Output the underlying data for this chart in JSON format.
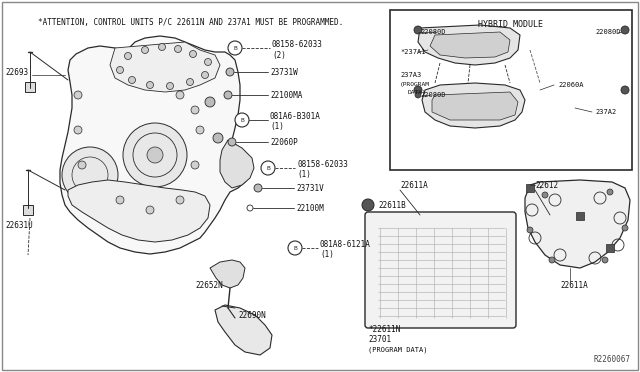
{
  "bg_color": "#ffffff",
  "attention_text": "*ATTENTION, CONTROL UNITS P/C 22611N AND 237A1 MUST BE PROGRAMMED.",
  "ref_code": "R2260067",
  "hybrid_module_label": "HYBRID MODULE",
  "line_color": "#2a2a2a",
  "text_color": "#111111"
}
